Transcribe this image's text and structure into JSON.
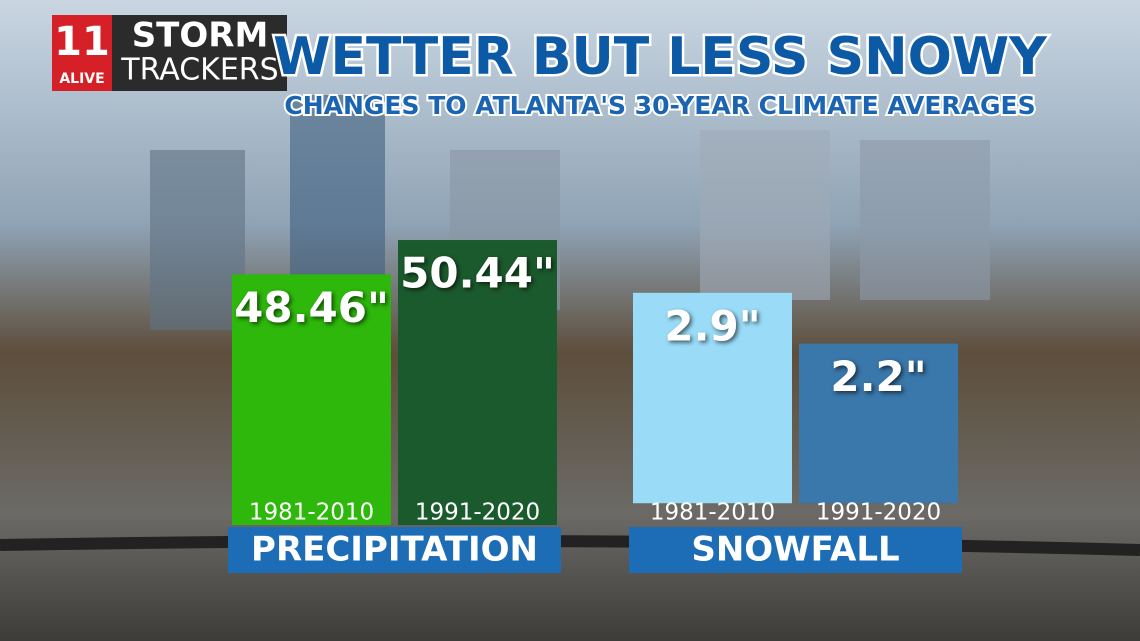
{
  "header": {
    "logo_number": "11",
    "logo_station": "ALIVE",
    "logo_line1": "STORM",
    "logo_line2": "TRACKERS",
    "title": "WETTER BUT LESS SNOWY",
    "subtitle": "CHANGES TO ATLANTA'S 30-YEAR CLIMATE AVERAGES"
  },
  "chart_data": [
    {
      "type": "bar",
      "label": "PRECIPITATION",
      "categories": [
        "1981-2010",
        "1991-2020"
      ],
      "values": [
        48.46,
        50.44
      ],
      "value_labels": [
        "48.46\"",
        "50.44\""
      ],
      "colors": [
        "#2db80b",
        "#1b5a2c"
      ],
      "ylim": [
        34,
        52
      ]
    },
    {
      "type": "bar",
      "label": "SNOWFALL",
      "categories": [
        "1981-2010",
        "1991-2020"
      ],
      "values": [
        2.9,
        2.2
      ],
      "value_labels": [
        "2.9\"",
        "2.2\""
      ],
      "colors": [
        "#9adcf8",
        "#3a77aa"
      ],
      "ylim": [
        -0.3,
        4
      ]
    }
  ]
}
